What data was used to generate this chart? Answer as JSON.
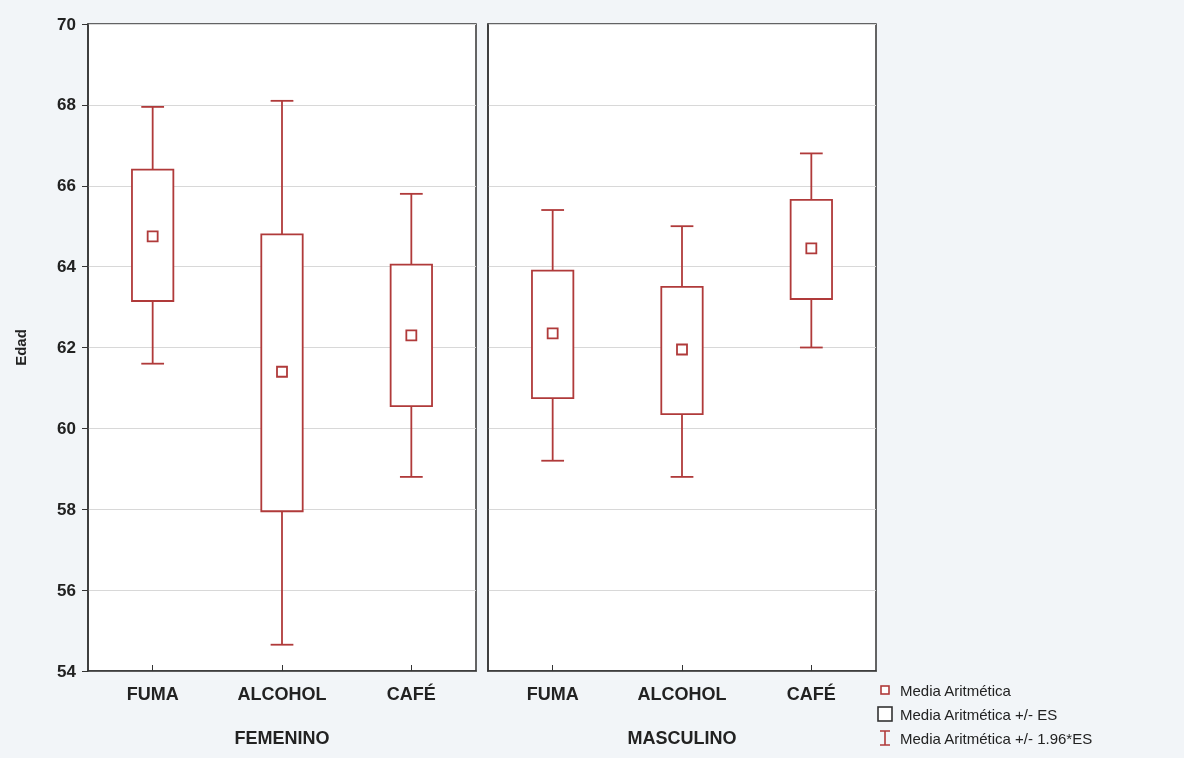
{
  "chart_data": [
    {
      "type": "box",
      "xlabel": "FEMENINO",
      "ylabel": "Edad",
      "categories": [
        "FUMA",
        "ALCOHOL",
        "CAFÉ"
      ],
      "color": "#b03a3a",
      "boxes": [
        {
          "low": 61.6,
          "q1": 63.15,
          "q3": 66.4,
          "high": 67.95,
          "mean": 64.75
        },
        {
          "low": 54.65,
          "q1": 57.95,
          "q3": 64.8,
          "high": 68.1,
          "mean": 61.4
        },
        {
          "low": 58.8,
          "q1": 60.55,
          "q3": 64.05,
          "high": 65.8,
          "mean": 62.3
        }
      ],
      "ylim": [
        54,
        70
      ],
      "yticks": [
        54,
        56,
        58,
        60,
        62,
        64,
        66,
        68,
        70
      ],
      "grid": "y"
    },
    {
      "type": "box",
      "xlabel": "MASCULINO",
      "categories": [
        "FUMA",
        "ALCOHOL",
        "CAFÉ"
      ],
      "color": "#b03a3a",
      "boxes": [
        {
          "low": 59.2,
          "q1": 60.75,
          "q3": 63.9,
          "high": 65.4,
          "mean": 62.35
        },
        {
          "low": 58.8,
          "q1": 60.35,
          "q3": 63.5,
          "high": 65.0,
          "mean": 61.95
        },
        {
          "low": 62.0,
          "q1": 63.2,
          "q3": 65.65,
          "high": 66.8,
          "mean": 64.45
        }
      ],
      "ylim": [
        54,
        70
      ],
      "yticks": [
        54,
        56,
        58,
        60,
        62,
        64,
        66,
        68,
        70
      ],
      "grid": "y",
      "tick_labels": "x",
      "annotations": [
        "Media Aritmética",
        "Media Aritmética +/- ES",
        "Media Aritmética +/- 1.96*ES"
      ]
    }
  ]
}
